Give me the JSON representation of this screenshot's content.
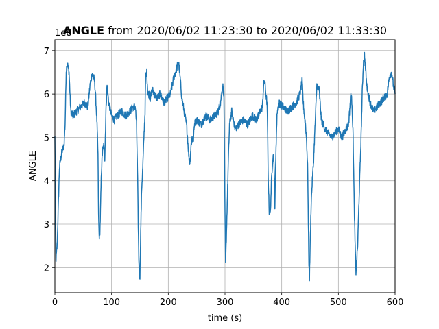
{
  "chart_data": {
    "type": "line",
    "title_bold": "ANGLE",
    "title_rest": " from 2020/06/02 11:23:30 to 2020/06/02 11:33:30",
    "xlabel": "time (s)",
    "ylabel": "ANGLE",
    "y_offset_text": "1e8",
    "xlim": [
      0,
      600
    ],
    "ylim": [
      1.42,
      7.25
    ],
    "x_ticks": [
      0,
      100,
      200,
      300,
      400,
      500,
      600
    ],
    "y_ticks": [
      2,
      3,
      4,
      5,
      6,
      7
    ],
    "grid": true,
    "colors": {
      "line": "#1f77b4"
    },
    "series": [
      {
        "x": [
          0,
          2,
          4,
          6,
          8,
          10,
          13,
          16,
          18,
          20,
          22,
          25,
          28,
          32,
          38,
          45,
          52,
          58,
          62,
          65,
          68,
          70,
          72,
          74,
          76,
          77,
          78,
          79,
          80,
          82,
          84,
          86,
          88,
          90,
          92,
          95,
          100,
          105,
          110,
          118,
          125,
          132,
          138,
          142,
          144,
          146,
          147,
          148,
          149,
          150,
          151,
          153,
          155,
          157,
          159,
          160,
          162,
          164,
          166,
          168,
          170,
          172,
          175,
          180,
          186,
          192,
          198,
          204,
          210,
          215,
          218,
          220,
          224,
          228,
          232,
          234,
          236,
          237,
          238,
          240,
          242,
          244,
          246,
          250,
          258,
          266,
          274,
          282,
          288,
          292,
          296,
          298,
          299,
          300,
          301,
          302,
          304,
          306,
          308,
          312,
          318,
          324,
          332,
          340,
          348,
          356,
          362,
          366,
          368,
          370,
          372,
          374,
          375,
          376,
          378,
          380,
          382,
          384,
          386,
          387,
          388,
          390,
          392,
          396,
          402,
          410,
          418,
          426,
          432,
          436,
          438,
          440,
          442,
          444,
          446,
          447,
          448,
          449,
          450,
          452,
          454,
          456,
          458,
          460,
          462,
          466,
          470,
          476,
          482,
          488,
          494,
          500,
          506,
          510,
          514,
          518,
          522,
          524,
          526,
          527,
          528,
          529,
          530,
          531,
          532,
          534,
          536,
          538,
          540,
          542,
          544,
          546,
          550,
          556,
          562,
          568,
          574,
          580,
          586,
          590,
          594,
          597,
          600
        ],
        "y": [
          5.0,
          2.2,
          2.5,
          3.4,
          4.3,
          4.5,
          4.7,
          4.8,
          5.3,
          6.55,
          6.7,
          6.5,
          5.6,
          5.5,
          5.6,
          5.7,
          5.8,
          5.7,
          6.2,
          6.45,
          6.4,
          6.3,
          5.9,
          5.4,
          4.6,
          3.2,
          2.75,
          2.7,
          3.1,
          4.2,
          4.7,
          4.8,
          4.5,
          5.6,
          6.2,
          5.8,
          5.5,
          5.4,
          5.5,
          5.6,
          5.5,
          5.6,
          5.7,
          5.7,
          5.3,
          4.0,
          3.0,
          2.2,
          1.85,
          1.8,
          2.6,
          3.8,
          4.3,
          5.0,
          5.6,
          6.4,
          6.5,
          6.0,
          6.0,
          5.9,
          6.0,
          6.1,
          6.0,
          5.9,
          6.0,
          5.8,
          5.9,
          6.0,
          6.4,
          6.6,
          6.75,
          6.5,
          5.9,
          5.6,
          5.3,
          5.0,
          4.6,
          4.5,
          4.4,
          4.8,
          5.0,
          4.9,
          5.3,
          5.4,
          5.3,
          5.5,
          5.4,
          5.5,
          5.6,
          5.8,
          6.2,
          6.0,
          4.8,
          3.2,
          2.05,
          2.5,
          3.5,
          4.5,
          5.3,
          5.6,
          5.2,
          5.3,
          5.4,
          5.3,
          5.5,
          5.4,
          5.6,
          5.7,
          6.2,
          6.3,
          6.0,
          5.8,
          5.3,
          4.2,
          3.3,
          3.25,
          4.0,
          4.5,
          4.6,
          4.0,
          3.4,
          4.8,
          5.6,
          5.8,
          5.7,
          5.6,
          5.7,
          5.8,
          6.0,
          6.3,
          5.8,
          5.5,
          5.3,
          4.9,
          4.2,
          3.0,
          2.1,
          1.75,
          2.4,
          3.5,
          4.0,
          4.4,
          5.0,
          5.6,
          6.2,
          6.1,
          5.4,
          5.2,
          5.1,
          5.0,
          5.1,
          5.2,
          5.0,
          5.1,
          5.2,
          5.3,
          6.0,
          5.8,
          5.0,
          4.2,
          3.4,
          2.8,
          2.3,
          1.9,
          2.1,
          2.5,
          3.4,
          4.2,
          5.0,
          6.0,
          6.7,
          6.9,
          6.2,
          5.8,
          5.6,
          5.7,
          5.8,
          5.9,
          6.0,
          6.4,
          6.5,
          6.2,
          6.0
        ]
      }
    ]
  }
}
